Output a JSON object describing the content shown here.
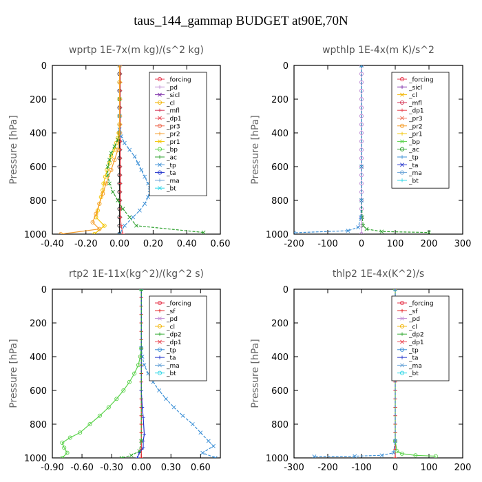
{
  "figure": {
    "title": "taus_144_gammap  BUDGET at90E,70N"
  },
  "colors": {
    "_forcing": "#e6334a",
    "_forcing_tl": "#222222",
    "_sf": "#e41a1c",
    "_pd": "#c28fd6",
    "_sicl": "#7b2aa8",
    "_cl": "#f2b400",
    "_cl_tr": "#a8328a",
    "_mfl": "#d63a5a",
    "_dp1": "#e8424e",
    "_dp1_green": "#5ad24a",
    "_dp2": "#33aa33",
    "_pr3": "#ee6a50",
    "_pr2": "#f59d2a",
    "_pr1": "#f2c400",
    "_bp": "#5ad24a",
    "_ac": "#2ca02c",
    "_tp": "#3b8fd6",
    "_ta": "#2233cc",
    "_ma": "#6aa4d8",
    "_bt": "#2ad6e6"
  },
  "chart_data": [
    {
      "type": "line",
      "title": "wprtp  1E-7x(m kg)/(s^2 kg)",
      "ylabel": "Pressure [hPa]",
      "xlim": [
        -0.4,
        0.6
      ],
      "ylim": [
        1000,
        0
      ],
      "xticks": [
        "-0.40",
        "-0.20",
        "0.00",
        "0.20",
        "0.40",
        "0.60"
      ],
      "xtick_values": [
        -0.4,
        -0.2,
        0,
        0.2,
        0.4,
        0.6
      ],
      "yticks": [
        "0",
        "200",
        "400",
        "600",
        "800",
        "1000"
      ],
      "ytick_values": [
        0,
        200,
        400,
        600,
        800,
        1000
      ],
      "legend_position": "top-right",
      "legend": [
        "_forcing",
        "_pd",
        "_sicl",
        "_cl",
        "_mfl",
        "_dp1",
        "_pr3",
        "_pr2",
        "_pr1",
        "_bp",
        "_ac",
        "_tp",
        "_ta",
        "_ma",
        "_bt"
      ],
      "series": [
        {
          "name": "_forcing",
          "color": "#222222",
          "marker": "circle",
          "x": [
            0,
            0,
            0,
            0,
            0,
            0,
            0,
            0,
            0,
            0,
            0,
            0,
            0,
            0,
            0,
            0,
            0,
            0,
            0,
            0,
            0
          ],
          "y": [
            0,
            50,
            100,
            150,
            200,
            250,
            300,
            350,
            400,
            450,
            500,
            550,
            600,
            650,
            700,
            750,
            800,
            850,
            900,
            950,
            1000
          ]
        },
        {
          "name": "_dp1",
          "color": "#e8424e",
          "marker": "plus",
          "x": [
            0.005,
            0.005,
            0.005,
            0.005,
            0.005,
            0.005,
            0.005,
            0.005,
            0.005,
            0.005,
            0.005,
            0.005,
            0.005,
            0.005,
            0.005,
            0.005,
            0.005,
            0.005,
            0.005,
            0.01,
            0.02
          ],
          "y": [
            0,
            50,
            100,
            150,
            200,
            250,
            300,
            350,
            400,
            450,
            500,
            550,
            600,
            650,
            700,
            750,
            800,
            850,
            900,
            950,
            1000
          ]
        },
        {
          "name": "_pr1",
          "color": "#f2c400",
          "marker": "circle",
          "x": [
            0,
            0,
            0,
            0,
            0,
            -0.005,
            -0.01,
            -0.02,
            -0.03,
            -0.05,
            -0.06,
            -0.075,
            -0.085,
            -0.095,
            -0.1,
            -0.11,
            -0.12,
            -0.13,
            -0.14,
            -0.09,
            -0.15
          ],
          "y": [
            0,
            100,
            200,
            300,
            350,
            400,
            430,
            460,
            500,
            540,
            580,
            620,
            660,
            700,
            740,
            780,
            820,
            860,
            900,
            950,
            1000
          ]
        },
        {
          "name": "_ac",
          "color": "#2ca02c",
          "marker": "x",
          "x": [
            0,
            0,
            0,
            0,
            -0.01,
            -0.03,
            -0.05,
            -0.06,
            -0.07,
            -0.07,
            -0.06,
            -0.04,
            -0.01,
            0.02,
            0.06,
            0.1,
            0.5
          ],
          "y": [
            0,
            200,
            300,
            400,
            440,
            480,
            520,
            560,
            600,
            650,
            700,
            750,
            800,
            850,
            900,
            950,
            990
          ]
        },
        {
          "name": "_tp",
          "color": "#3b8fd6",
          "marker": "x",
          "x": [
            0,
            0,
            0,
            0.01,
            0.03,
            0.06,
            0.09,
            0.11,
            0.13,
            0.15,
            0.17,
            0.18,
            0.17,
            0.15,
            0.12,
            0.08,
            0.03,
            0
          ],
          "y": [
            0,
            300,
            380,
            420,
            460,
            500,
            540,
            580,
            620,
            660,
            700,
            740,
            780,
            820,
            860,
            900,
            950,
            1000
          ]
        },
        {
          "name": "_pr2",
          "color": "#f59d2a",
          "marker": "circle",
          "x": [
            0,
            0,
            -0.01,
            -0.03,
            -0.05,
            -0.08,
            -0.1,
            -0.12,
            -0.14,
            -0.16,
            -0.12,
            -0.35
          ],
          "y": [
            0,
            400,
            500,
            560,
            620,
            700,
            760,
            820,
            880,
            930,
            970,
            1000
          ]
        }
      ]
    },
    {
      "type": "line",
      "title": "wpthlp  1E-4x(m K)/s^2",
      "ylabel": "Pressure [hPa]",
      "xlim": [
        -200,
        300
      ],
      "ylim": [
        1000,
        0
      ],
      "xticks": [
        "-200",
        "-100",
        "0",
        "100",
        "200",
        "300"
      ],
      "xtick_values": [
        -200,
        -100,
        0,
        100,
        200,
        300
      ],
      "yticks": [
        "0",
        "200",
        "400",
        "600",
        "800",
        "1000"
      ],
      "ytick_values": [
        0,
        200,
        400,
        600,
        800,
        1000
      ],
      "legend_position": "top-right",
      "legend": [
        "_forcing",
        "_sicl",
        "_cl",
        "_mfl",
        "_dp1",
        "_pr3",
        "_pr2",
        "_pr1",
        "_bp",
        "_ac",
        "_tp",
        "_ta",
        "_ma",
        "_bt"
      ],
      "series": [
        {
          "name": "_forcing",
          "color": "#c28fd6",
          "marker": "circle",
          "x": [
            0,
            0,
            0,
            0,
            0,
            0,
            0,
            0,
            0,
            0,
            0,
            0,
            0,
            0,
            0,
            0,
            0,
            0,
            0,
            0,
            0
          ],
          "y": [
            0,
            50,
            100,
            150,
            200,
            250,
            300,
            350,
            400,
            450,
            500,
            550,
            600,
            650,
            700,
            750,
            800,
            850,
            900,
            950,
            1000
          ]
        },
        {
          "name": "_ac",
          "color": "#2ca02c",
          "marker": "x",
          "x": [
            0,
            0,
            0,
            2,
            5,
            15,
            60,
            200
          ],
          "y": [
            0,
            600,
            800,
            900,
            950,
            970,
            985,
            990
          ]
        },
        {
          "name": "_tp",
          "color": "#3b8fd6",
          "marker": "x",
          "x": [
            0,
            0,
            0,
            -2,
            -10,
            -40,
            -200
          ],
          "y": [
            0,
            600,
            800,
            900,
            960,
            980,
            992
          ]
        }
      ]
    },
    {
      "type": "line",
      "title": "rtp2  1E-11x(kg^2)/(kg^2 s)",
      "ylabel": "Pressure [hPa]",
      "xlim": [
        -0.9,
        0.8
      ],
      "ylim": [
        1000,
        0
      ],
      "xticks": [
        "-0.90",
        "-0.60",
        "-0.30",
        "0.00",
        "0.30",
        "0.60"
      ],
      "xtick_values": [
        -0.9,
        -0.6,
        -0.3,
        0,
        0.3,
        0.6
      ],
      "yticks": [
        "0",
        "200",
        "400",
        "600",
        "800",
        "1000"
      ],
      "ytick_values": [
        0,
        200,
        400,
        600,
        800,
        1000
      ],
      "legend_position": "top-right",
      "legend": [
        "_forcing",
        "_sf",
        "_pd",
        "_cl",
        "_dp2",
        "_dp1",
        "_tp",
        "_ta",
        "_ma",
        "_bt"
      ],
      "series": [
        {
          "name": "_forcing",
          "color": "#e41a1c",
          "marker": "plus",
          "x": [
            0,
            0,
            0,
            0,
            0,
            0,
            0,
            0,
            0,
            0,
            0,
            0,
            0,
            0,
            0,
            0,
            0,
            0,
            0,
            0,
            0
          ],
          "y": [
            0,
            50,
            100,
            150,
            200,
            250,
            300,
            350,
            400,
            450,
            500,
            550,
            600,
            650,
            700,
            750,
            800,
            850,
            900,
            950,
            1000
          ]
        },
        {
          "name": "_dp1",
          "color": "#5ad24a",
          "marker": "circle",
          "x": [
            0,
            0,
            -0.01,
            -0.03,
            -0.07,
            -0.12,
            -0.18,
            -0.25,
            -0.33,
            -0.42,
            -0.52,
            -0.62,
            -0.72,
            -0.8,
            -0.78,
            -0.75,
            -0.8
          ],
          "y": [
            0,
            350,
            400,
            450,
            500,
            550,
            600,
            650,
            700,
            750,
            800,
            850,
            880,
            910,
            940,
            970,
            1000
          ]
        },
        {
          "name": "_tp",
          "color": "#3b8fd6",
          "marker": "x",
          "x": [
            0,
            0,
            0.01,
            0.03,
            0.07,
            0.12,
            0.18,
            0.25,
            0.33,
            0.42,
            0.52,
            0.6,
            0.68,
            0.73,
            0.62,
            0.75
          ],
          "y": [
            0,
            350,
            400,
            450,
            500,
            550,
            600,
            650,
            700,
            750,
            800,
            850,
            900,
            930,
            970,
            1000
          ]
        },
        {
          "name": "_ta",
          "color": "#2233cc",
          "marker": "plus",
          "x": [
            0,
            0,
            0.01,
            0.02,
            0.03,
            0.02,
            0.02,
            -0.02,
            -0.04
          ],
          "y": [
            0,
            600,
            700,
            760,
            860,
            900,
            940,
            970,
            1000
          ]
        },
        {
          "name": "_dp2",
          "color": "#33aa33",
          "marker": "x",
          "x": [
            0,
            0,
            -0.02,
            -0.1,
            -0.2
          ],
          "y": [
            0,
            900,
            960,
            985,
            1000
          ]
        }
      ]
    },
    {
      "type": "line",
      "title": "thlp2  1E-4x(K^2)/s",
      "ylabel": "Pressure [hPa]",
      "xlim": [
        -300,
        200
      ],
      "ylim": [
        1000,
        0
      ],
      "xticks": [
        "-300",
        "-200",
        "-100",
        "0",
        "100",
        "200"
      ],
      "xtick_values": [
        -300,
        -200,
        -100,
        0,
        100,
        200
      ],
      "yticks": [
        "0",
        "200",
        "400",
        "600",
        "800",
        "1000"
      ],
      "ytick_values": [
        0,
        200,
        400,
        600,
        800,
        1000
      ],
      "legend_position": "top-right",
      "legend": [
        "_forcing",
        "_sf",
        "_pd",
        "_cl",
        "_dp2",
        "_dp1",
        "_tp",
        "_ta",
        "_ma",
        "_bt"
      ],
      "series": [
        {
          "name": "_forcing",
          "color": "#e41a1c",
          "marker": "plus",
          "x": [
            0,
            0,
            0,
            0,
            0,
            0,
            0,
            0,
            0,
            0,
            0,
            0,
            0,
            0,
            0,
            0,
            0,
            0,
            0,
            0,
            0
          ],
          "y": [
            0,
            50,
            100,
            150,
            200,
            250,
            300,
            350,
            400,
            450,
            500,
            550,
            600,
            650,
            700,
            750,
            800,
            850,
            900,
            950,
            1000
          ]
        },
        {
          "name": "_dp1",
          "color": "#5ad24a",
          "marker": "circle",
          "x": [
            0,
            0,
            5,
            20,
            60,
            120
          ],
          "y": [
            0,
            900,
            960,
            975,
            985,
            990
          ]
        },
        {
          "name": "_tp",
          "color": "#3b8fd6",
          "marker": "x",
          "x": [
            0,
            0,
            -5,
            -40,
            -120,
            -240
          ],
          "y": [
            0,
            900,
            970,
            985,
            990,
            992
          ]
        }
      ]
    }
  ]
}
